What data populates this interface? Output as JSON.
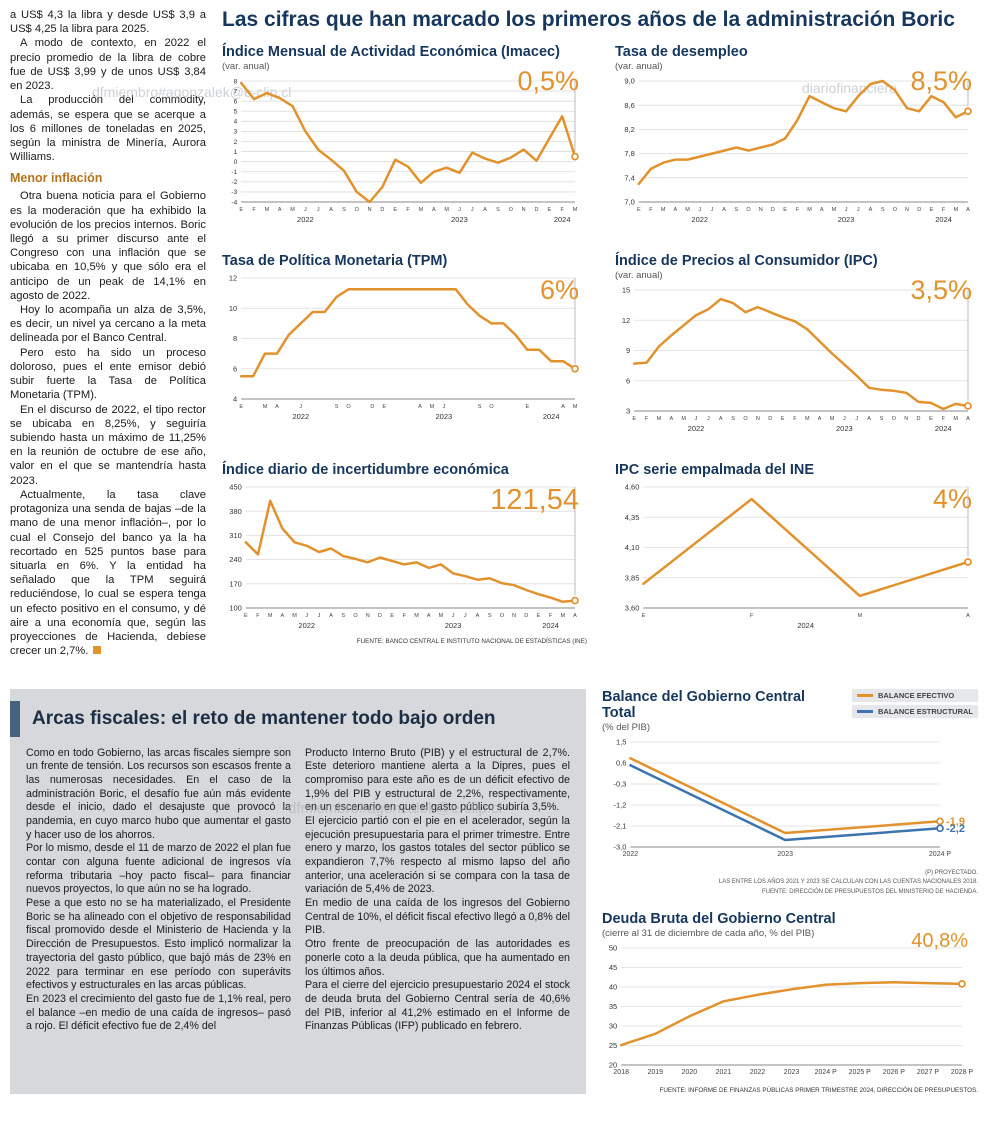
{
  "page": {
    "main_title": "Las cifras que han marcado los primeros años de la administración Boric",
    "watermarks": [
      "dfmiembro#agonzalek@e-clip.cl",
      "diariofinanciero",
      "dfmiembro#agonzalek@e-clip.cl"
    ]
  },
  "colors": {
    "accent": "#E2922D",
    "navy": "#16365C",
    "blue": "#3B74AE",
    "subhead": "#B5741C",
    "box_gray": "#D7D8DB"
  },
  "left_column": {
    "paragraphs": [
      "a US$ 4,3 la libra y desde US$ 3,9 a US$ 4,25 la libra para 2025.",
      "A modo de contexto, en 2022 el precio promedio de la libra de cobre fue de US$ 3,99 y de unos US$ 3,84 en 2023.",
      "La producción del commodity, además, se espera que se acerque a los 6 millones de toneladas en 2025, según la ministra de Minería, Aurora Williams."
    ],
    "subheading": "Menor inflación",
    "paragraphs2": [
      "Otra buena noticia para el Gobierno es la moderación que ha exhibido la evolución de los precios internos. Boric llegó a su primer discurso ante el Congreso con una inflación que se ubicaba en 10,5% y que sólo era el anticipo de un peak de 14,1% en agosto de 2022.",
      "Hoy lo acompaña un alza de 3,5%, es decir, un nivel ya cercano a la meta delineada por el Banco Central.",
      "Pero esto ha sido un proceso doloroso, pues el ente emisor debió subir fuerte la Tasa de Política Monetaria (TPM).",
      "En el discurso de 2022, el tipo rector se ubicaba en 8,25%, y seguiría subiendo hasta un máximo de 11,25% en la reunión de octubre de ese año, valor en el que se mantendría hasta 2023.",
      "Actualmente, la tasa clave protagoniza una senda de bajas –de la mano de una menor inflación–, por lo cual el Consejo del banco ya la ha recortado en 525 puntos base para situarla en 6%. Y la entidad ha señalado que la TPM seguirá reduciéndose, lo cual se espera tenga un efecto positivo en el consumo, y dé aire a una economía que, según las proyecciones de Hacienda, debiese crecer un 2,7%."
    ]
  },
  "arcas": {
    "title": "Arcas fiscales: el reto de mantener todo bajo orden",
    "col1": [
      "Como en todo Gobierno, las arcas fiscales siempre son un frente de tensión. Los recursos son escasos frente a las numerosas necesidades. En el caso de la administración Boric, el desafío fue aún más evidente desde el inicio, dado el desajuste que provocó la pandemia, en cuyo marco hubo que aumentar el gasto y hacer uso de los ahorros.",
      "Por lo mismo, desde el 11 de marzo de 2022 el plan fue contar con alguna fuente adicional de ingresos vía reforma tributaria –hoy pacto fiscal– para financiar nuevos proyectos, lo que aún no se ha logrado.",
      "Pese a que esto no se ha materializado, el Presidente Boric se ha alineado con el objetivo de responsabilidad fiscal promovido desde el Ministerio de Hacienda y la Dirección de Presupuestos. Esto implicó normalizar la trayectoria del gasto público, que bajó más de 23% en 2022 para terminar en ese período con superávits efectivos y estructurales en las arcas públicas.",
      "En 2023 el crecimiento del gasto fue de 1,1% real, pero el balance –en medio de una caída de ingresos– pasó a rojo. El déficit efectivo fue de 2,4% del"
    ],
    "col2": [
      "Producto Interno Bruto (PIB) y el estructural de 2,7%. Este deterioro mantiene alerta a la Dipres, pues el compromiso para este año es de un déficit efectivo de 1,9% del PIB y estructural de 2,2%, respectivamente, en un escenario en que el gasto público subiría 3,5%.",
      "El ejercicio partió con el pie en el acelerador, según la ejecución presupuestaria para el primer trimestre. Entre enero y marzo, los gastos totales del sector público se expandieron 7,7% respecto al mismo lapso del año anterior, una aceleración si se compara con la tasa de variación de 5,4% de 2023.",
      "En medio de una caída de los ingresos del Gobierno Central de 10%, el déficit fiscal efectivo llegó a 0,8% del PIB.",
      "Otro frente de preocupación de las autoridades es ponerle coto a la deuda pública, que ha aumentado en los últimos años.",
      "Para el cierre del ejercicio presupuestario 2024 el stock de deuda bruta del Gobierno Central sería de 40,6% del PIB, inferior al 41,2% estimado en el Informe de Finanzas Públicas (IFP) publicado en febrero."
    ]
  },
  "chart_data": [
    {
      "id": "imacec",
      "type": "line",
      "title": "Índice Mensual de Actividad Económica (Imacec)",
      "subtitle": "(var. anual)",
      "highlight": "0,5%",
      "ylim": [
        -4,
        8
      ],
      "ytick_values": [
        8,
        7,
        6,
        5,
        4,
        3,
        2,
        1,
        0,
        -1,
        -2,
        -3,
        -4
      ],
      "ytick_labels": [
        "8",
        "7",
        "6",
        "5",
        "4",
        "3",
        "2",
        "1",
        "0",
        "-1",
        "-2",
        "-3",
        "-4"
      ],
      "x": [
        "E",
        "F",
        "M",
        "A",
        "M",
        "J",
        "J",
        "A",
        "S",
        "O",
        "N",
        "D",
        "E",
        "F",
        "M",
        "A",
        "M",
        "J",
        "J",
        "A",
        "S",
        "O",
        "N",
        "D",
        "E",
        "F",
        "M"
      ],
      "years": [
        {
          "i": 5,
          "label": "2022"
        },
        {
          "i": 17,
          "label": "2023"
        },
        {
          "i": 25,
          "label": "2024"
        }
      ],
      "guide": true,
      "series": [
        {
          "name": "Imacec",
          "color": "#E2922D",
          "marker": true,
          "values": [
            7.8,
            6.2,
            6.8,
            6.3,
            5.5,
            3.0,
            1.2,
            0.2,
            -0.9,
            -3.0,
            -4.0,
            -2.5,
            0.2,
            -0.5,
            -2.1,
            -1.0,
            -0.6,
            -1.1,
            0.9,
            0.3,
            -0.1,
            0.4,
            1.2,
            0.1,
            2.3,
            4.5,
            0.5
          ]
        }
      ]
    },
    {
      "id": "desempleo",
      "type": "line",
      "title": "Tasa de desempleo",
      "subtitle": "(var. anual)",
      "highlight": "8,5%",
      "ylim": [
        7.0,
        9.0
      ],
      "ytick_values": [
        9.0,
        8.6,
        8.2,
        7.8,
        7.4,
        7.0
      ],
      "ytick_labels": [
        "9,0",
        "8,6",
        "8,2",
        "7,8",
        "7,4",
        "7,0"
      ],
      "x": [
        "E",
        "F",
        "M",
        "A",
        "M",
        "J",
        "J",
        "A",
        "S",
        "O",
        "N",
        "D",
        "E",
        "F",
        "M",
        "A",
        "M",
        "J",
        "J",
        "A",
        "S",
        "O",
        "N",
        "D",
        "E",
        "F",
        "M",
        "A"
      ],
      "years": [
        {
          "i": 5,
          "label": "2022"
        },
        {
          "i": 17,
          "label": "2023"
        },
        {
          "i": 25,
          "label": "2024"
        }
      ],
      "guide": true,
      "series": [
        {
          "name": "Tasa de desempleo",
          "color": "#E2922D",
          "marker": true,
          "values": [
            7.3,
            7.55,
            7.65,
            7.7,
            7.7,
            7.75,
            7.8,
            7.85,
            7.9,
            7.85,
            7.9,
            7.95,
            8.05,
            8.35,
            8.75,
            8.65,
            8.55,
            8.5,
            8.75,
            8.95,
            9.0,
            8.85,
            8.55,
            8.5,
            8.75,
            8.65,
            8.4,
            8.5
          ]
        }
      ]
    },
    {
      "id": "tpm",
      "type": "line",
      "title": "Tasa de Política Monetaria (TPM)",
      "highlight": "6%",
      "ylim": [
        4,
        12
      ],
      "ytick_values": [
        12,
        10,
        8,
        6,
        4
      ],
      "ytick_labels": [
        "12",
        "10",
        "8",
        "6",
        "4"
      ],
      "x": [
        "E",
        "",
        "M",
        "A",
        "",
        "J",
        "",
        "",
        "S",
        "O",
        "",
        "D",
        "E",
        "",
        "",
        "A",
        "M",
        "J",
        "",
        "",
        "S",
        "O",
        "",
        "",
        "E",
        "",
        "",
        "A",
        "M"
      ],
      "years": [
        {
          "i": 5,
          "label": "2022"
        },
        {
          "i": 17,
          "label": "2023"
        },
        {
          "i": 26,
          "label": "2024"
        }
      ],
      "guide": true,
      "series": [
        {
          "name": "TPM",
          "color": "#E2922D",
          "marker": true,
          "values": [
            5.5,
            5.5,
            7.0,
            7.0,
            8.25,
            9.0,
            9.75,
            9.75,
            10.75,
            11.25,
            11.25,
            11.25,
            11.25,
            11.25,
            11.25,
            11.25,
            11.25,
            11.25,
            11.25,
            10.25,
            9.5,
            9.0,
            9.0,
            8.25,
            7.25,
            7.25,
            6.5,
            6.5,
            6.0
          ]
        }
      ]
    },
    {
      "id": "ipc",
      "type": "line",
      "title": "Índice de Precios al Consumidor (IPC)",
      "subtitle": "(var. anual)",
      "highlight": "3,5%",
      "ylim": [
        3,
        15
      ],
      "ytick_values": [
        15,
        12,
        9,
        6,
        3
      ],
      "ytick_labels": [
        "15",
        "12",
        "9",
        "6",
        "3"
      ],
      "x": [
        "E",
        "F",
        "M",
        "A",
        "M",
        "J",
        "J",
        "A",
        "S",
        "O",
        "N",
        "D",
        "E",
        "F",
        "M",
        "A",
        "M",
        "J",
        "J",
        "A",
        "S",
        "O",
        "N",
        "D",
        "E",
        "F",
        "M",
        "A"
      ],
      "years": [
        {
          "i": 5,
          "label": "2022"
        },
        {
          "i": 17,
          "label": "2023"
        },
        {
          "i": 25,
          "label": "2024"
        }
      ],
      "guide": true,
      "series": [
        {
          "name": "IPC",
          "color": "#E2922D",
          "marker": true,
          "values": [
            7.7,
            7.8,
            9.4,
            10.5,
            11.5,
            12.5,
            13.1,
            14.1,
            13.7,
            12.8,
            13.3,
            12.8,
            12.3,
            11.9,
            11.1,
            9.9,
            8.7,
            7.6,
            6.5,
            5.3,
            5.1,
            5.0,
            4.8,
            3.9,
            3.8,
            3.2,
            3.7,
            3.5
          ]
        }
      ]
    },
    {
      "id": "incertidumbre",
      "type": "line",
      "title": "Índice diario de incertidumbre económica",
      "highlight": "121,54",
      "highlight_size": 29,
      "ylim": [
        100,
        450
      ],
      "ytick_values": [
        450,
        380,
        310,
        240,
        170,
        100
      ],
      "ytick_labels": [
        "450",
        "380",
        "310",
        "240",
        "170",
        "100"
      ],
      "x": [
        "E",
        "F",
        "M",
        "A",
        "M",
        "J",
        "J",
        "A",
        "S",
        "O",
        "N",
        "D",
        "E",
        "F",
        "M",
        "A",
        "M",
        "J",
        "J",
        "A",
        "S",
        "O",
        "N",
        "D",
        "E",
        "F",
        "M",
        "A"
      ],
      "years": [
        {
          "i": 5,
          "label": "2022"
        },
        {
          "i": 17,
          "label": "2023"
        },
        {
          "i": 25,
          "label": "2024"
        }
      ],
      "guide": true,
      "source": "FUENTE: BANCO CENTRAL E INSTITUTO NACIONAL DE ESTADÍSTICAS (INE)",
      "series": [
        {
          "name": "Incertidumbre económica",
          "color": "#E2922D",
          "marker": true,
          "values": [
            290,
            255,
            410,
            330,
            290,
            280,
            262,
            272,
            250,
            242,
            232,
            246,
            236,
            226,
            232,
            216,
            226,
            200,
            192,
            182,
            186,
            172,
            166,
            152,
            140,
            130,
            118,
            121.54
          ]
        }
      ]
    },
    {
      "id": "ipc-ine",
      "type": "line",
      "title": "IPC serie empalmada del INE",
      "highlight": "4%",
      "ylim": [
        3.6,
        4.6
      ],
      "ytick_values": [
        4.6,
        4.35,
        4.1,
        3.85,
        3.6
      ],
      "ytick_labels": [
        "4,60",
        "4,35",
        "4,10",
        "3,85",
        "3,60"
      ],
      "x": [
        "E",
        "F",
        "M",
        "A"
      ],
      "years": [
        {
          "i": 1.5,
          "label": "2024"
        }
      ],
      "guide": true,
      "series": [
        {
          "name": "IPC serie empalmada",
          "color": "#E2922D",
          "marker": true,
          "values": [
            3.8,
            4.5,
            3.7,
            3.98
          ]
        }
      ]
    },
    {
      "id": "balance",
      "type": "line",
      "title": "Balance del Gobierno Central Total",
      "subtitle": "(% del PIB)",
      "ylim": [
        -3.0,
        1.5
      ],
      "ytick_values": [
        1.5,
        0.6,
        -0.3,
        -1.2,
        -2.1,
        -3.0
      ],
      "ytick_labels": [
        "1,5",
        "0,6",
        "-0,3",
        "-1,2",
        "-2,1",
        "-3,0"
      ],
      "x": [
        "2022",
        "2023",
        "2024 P"
      ],
      "guide": false,
      "legend_position": "top-right",
      "footnotes": [
        "(P) PROYECTADO.",
        "LAS ENTRE LOS AÑOS 2021 Y 2023 SE CALCULAN CON LAS CUENTAS NACIONALES 2018.",
        "FUENTE: DIRECCIÓN DE PRESUPUESTOS DEL MINISTERIO DE HACIENDA."
      ],
      "series": [
        {
          "name": "BALANCE EFECTIVO",
          "color": "#E2922D",
          "marker": true,
          "end_label": "-1,9",
          "values": [
            0.8,
            -2.4,
            -1.9
          ]
        },
        {
          "name": "BALANCE ESTRUCTURAL",
          "color": "#3B74AE",
          "marker": true,
          "end_label": "-2,2",
          "values": [
            0.5,
            -2.7,
            -2.2
          ]
        }
      ]
    },
    {
      "id": "deuda",
      "type": "line",
      "title": "Deuda Bruta del Gobierno Central",
      "subtitle": "(cierre al 31 de diciembre de cada año, % del PIB)",
      "highlight": "40,8%",
      "highlight_size": 20,
      "ylim": [
        20,
        50
      ],
      "ytick_values": [
        50,
        45,
        40,
        35,
        30,
        25,
        20
      ],
      "ytick_labels": [
        "50",
        "45",
        "40",
        "35",
        "30",
        "25",
        "20"
      ],
      "x": [
        "2018",
        "2019",
        "2020",
        "2021",
        "2022",
        "2023",
        "2024 P",
        "2025 P",
        "2026 P",
        "2027 P",
        "2028 P"
      ],
      "guide": false,
      "source": "FUENTE: INFORME DE FINANZAS PÚBLICAS PRIMER TRIMESTRE 2024, DIRECCIÓN DE PRESUPUESTOS.",
      "series": [
        {
          "name": "Deuda bruta",
          "color": "#E2922D",
          "marker": true,
          "values": [
            25.1,
            28.0,
            32.5,
            36.3,
            38.0,
            39.4,
            40.6,
            41.0,
            41.2,
            41.0,
            40.8
          ]
        }
      ]
    }
  ]
}
